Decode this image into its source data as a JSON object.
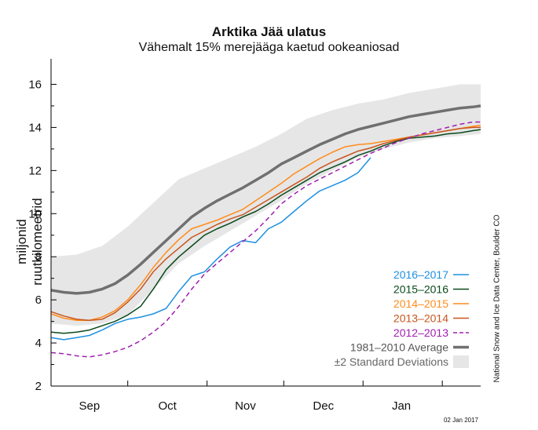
{
  "chart_data": {
    "type": "line",
    "title": "Arktika Jää ulatus",
    "subtitle": "Vähemalt 15% merejääga kaetud ookeaniosad",
    "ylabel": "miljonid ruutkilomeetrid",
    "xlabel": "",
    "ylim": [
      2,
      17
    ],
    "yticks": [
      2,
      4,
      6,
      8,
      10,
      12,
      14,
      16
    ],
    "xlim": [
      0,
      168
    ],
    "xtick_labels": [
      {
        "label": "Sep",
        "x": 15
      },
      {
        "label": "Oct",
        "x": 45.5
      },
      {
        "label": "Nov",
        "x": 76
      },
      {
        "label": "Dec",
        "x": 106.5
      },
      {
        "label": "Jan",
        "x": 137
      }
    ],
    "month_boundaries": [
      30,
      61,
      91,
      122,
      153
    ],
    "credit": "National Snow and Ice Data Center, Boulder CO",
    "date_label": "02 Jan 2017",
    "band": {
      "name": "±2 Standard Deviations",
      "color": "#e6e6e6",
      "x": [
        0,
        10,
        20,
        30,
        40,
        50,
        60,
        70,
        80,
        90,
        100,
        110,
        120,
        130,
        140,
        150,
        160,
        168
      ],
      "upper": [
        8.0,
        8.1,
        8.5,
        9.4,
        10.5,
        11.6,
        12.1,
        12.6,
        13.1,
        13.7,
        14.4,
        14.8,
        15.1,
        15.3,
        15.6,
        15.8,
        16.0,
        16.0
      ],
      "lower": [
        4.9,
        4.8,
        4.9,
        5.3,
        6.5,
        7.7,
        8.5,
        9.2,
        9.9,
        10.6,
        11.4,
        12.0,
        12.6,
        13.0,
        13.3,
        13.5,
        13.6,
        13.7
      ]
    },
    "series": [
      {
        "name": "1981–2010 Average",
        "color": "#707070",
        "width": 3.5,
        "dash": "",
        "x": [
          0,
          5,
          10,
          15,
          20,
          25,
          30,
          35,
          40,
          45,
          50,
          55,
          60,
          65,
          70,
          75,
          80,
          85,
          90,
          95,
          100,
          105,
          110,
          115,
          120,
          125,
          130,
          135,
          140,
          145,
          150,
          155,
          160,
          165,
          168
        ],
        "y": [
          6.45,
          6.35,
          6.3,
          6.35,
          6.5,
          6.75,
          7.15,
          7.65,
          8.2,
          8.75,
          9.3,
          9.85,
          10.25,
          10.6,
          10.9,
          11.2,
          11.55,
          11.9,
          12.3,
          12.6,
          12.9,
          13.2,
          13.45,
          13.7,
          13.9,
          14.05,
          14.2,
          14.35,
          14.5,
          14.6,
          14.7,
          14.8,
          14.9,
          14.95,
          15.0
        ]
      },
      {
        "name": "2016–2017",
        "color": "#1e90e0",
        "width": 1.5,
        "dash": "",
        "x": [
          0,
          5,
          10,
          15,
          20,
          25,
          30,
          35,
          40,
          45,
          50,
          55,
          60,
          65,
          70,
          75,
          80,
          85,
          90,
          95,
          100,
          105,
          110,
          115,
          120,
          125
        ],
        "y": [
          4.25,
          4.15,
          4.25,
          4.35,
          4.6,
          4.9,
          5.1,
          5.2,
          5.35,
          5.6,
          6.4,
          7.1,
          7.3,
          7.9,
          8.45,
          8.75,
          8.65,
          9.3,
          9.6,
          10.1,
          10.6,
          11.05,
          11.3,
          11.55,
          11.9,
          12.6
        ]
      },
      {
        "name": "2015–2016",
        "color": "#0b4a1c",
        "width": 1.5,
        "dash": "",
        "x": [
          0,
          5,
          10,
          15,
          20,
          25,
          30,
          35,
          40,
          45,
          50,
          55,
          60,
          65,
          70,
          75,
          80,
          85,
          90,
          95,
          100,
          105,
          110,
          115,
          120,
          125,
          130,
          135,
          140,
          145,
          150,
          155,
          160,
          165,
          168
        ],
        "y": [
          4.5,
          4.45,
          4.5,
          4.6,
          4.8,
          5.0,
          5.3,
          5.7,
          6.5,
          7.4,
          8.0,
          8.5,
          9.0,
          9.3,
          9.55,
          9.85,
          10.1,
          10.45,
          10.85,
          11.2,
          11.55,
          11.9,
          12.15,
          12.4,
          12.7,
          12.9,
          13.15,
          13.35,
          13.5,
          13.55,
          13.6,
          13.7,
          13.75,
          13.85,
          13.9
        ]
      },
      {
        "name": "2014–2015",
        "color": "#ff8c1a",
        "width": 1.5,
        "dash": "",
        "x": [
          0,
          5,
          10,
          15,
          20,
          25,
          30,
          35,
          40,
          45,
          50,
          55,
          60,
          65,
          70,
          75,
          80,
          85,
          90,
          95,
          100,
          105,
          110,
          115,
          120,
          125,
          130,
          135,
          140,
          145,
          150,
          155,
          160,
          165,
          168
        ],
        "y": [
          5.35,
          5.15,
          5.05,
          5.05,
          5.2,
          5.5,
          6.0,
          6.7,
          7.5,
          8.2,
          8.8,
          9.3,
          9.5,
          9.7,
          9.95,
          10.2,
          10.6,
          11.0,
          11.4,
          11.85,
          12.2,
          12.55,
          12.85,
          13.1,
          13.2,
          13.25,
          13.35,
          13.45,
          13.55,
          13.65,
          13.75,
          13.85,
          13.95,
          14.05,
          14.1
        ]
      },
      {
        "name": "2013–2014",
        "color": "#c8561e",
        "width": 1.5,
        "dash": "",
        "x": [
          0,
          5,
          10,
          15,
          20,
          25,
          30,
          35,
          40,
          45,
          50,
          55,
          60,
          65,
          70,
          75,
          80,
          85,
          90,
          95,
          100,
          105,
          110,
          115,
          120,
          125,
          130,
          135,
          140,
          145,
          150,
          155,
          160,
          165,
          168
        ],
        "y": [
          5.45,
          5.25,
          5.1,
          5.05,
          5.1,
          5.4,
          5.9,
          6.5,
          7.3,
          7.9,
          8.4,
          8.9,
          9.2,
          9.5,
          9.75,
          9.95,
          10.3,
          10.65,
          11.0,
          11.35,
          11.7,
          12.1,
          12.4,
          12.65,
          12.9,
          13.05,
          13.25,
          13.4,
          13.55,
          13.65,
          13.75,
          13.85,
          13.95,
          14.0,
          14.0
        ]
      },
      {
        "name": "2012–2013",
        "color": "#a020b0",
        "width": 1.5,
        "dash": "6,4",
        "x": [
          0,
          5,
          10,
          15,
          20,
          25,
          30,
          35,
          40,
          45,
          50,
          55,
          60,
          65,
          70,
          75,
          80,
          85,
          90,
          95,
          100,
          105,
          110,
          115,
          120,
          125,
          130,
          135,
          140,
          145,
          150,
          155,
          160,
          165,
          168
        ],
        "y": [
          3.55,
          3.5,
          3.4,
          3.35,
          3.45,
          3.6,
          3.8,
          4.1,
          4.5,
          5.0,
          5.7,
          6.5,
          7.2,
          7.7,
          8.2,
          8.7,
          9.2,
          9.8,
          10.45,
          10.9,
          11.3,
          11.6,
          11.9,
          12.2,
          12.5,
          12.8,
          13.05,
          13.3,
          13.5,
          13.7,
          13.85,
          14.0,
          14.15,
          14.25,
          14.25
        ]
      }
    ],
    "legend": {
      "placement": "lower-right",
      "entries": [
        "2016–2017",
        "2015–2016",
        "2014–2015",
        "2013–2014",
        "2012–2013",
        "1981–2010 Average",
        "±2 Standard Deviations"
      ]
    }
  }
}
